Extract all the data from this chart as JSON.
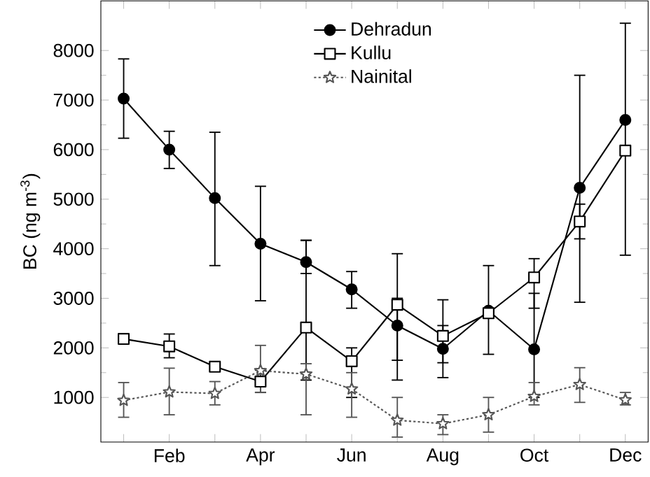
{
  "chart_data": {
    "type": "line",
    "ylabel": "BC (ng m$^{-3}$)",
    "categories": [
      null,
      "Feb",
      null,
      "Apr",
      null,
      "Jun",
      null,
      "Aug",
      null,
      "Oct",
      null,
      "Dec"
    ],
    "ylim": [
      100,
      9000
    ],
    "yticks": [
      1000,
      2000,
      3000,
      4000,
      5000,
      6000,
      7000,
      8000
    ],
    "legend": "top",
    "grid": false,
    "series": [
      {
        "name": "Dehradun",
        "color": "#000000",
        "marker": "circle",
        "line_style": "solid",
        "values": [
          7030,
          6000,
          5020,
          4100,
          3730,
          3180,
          2450,
          1980,
          2750,
          1970,
          5230,
          6600
        ],
        "errors": [
          [
            6230,
            7830
          ],
          [
            5620,
            6370
          ],
          [
            3660,
            6350
          ],
          [
            2950,
            5260
          ],
          [
            3500,
            4170
          ],
          [
            2800,
            3540
          ],
          [
            1750,
            3000
          ],
          [
            1400,
            2450
          ],
          [
            1870,
            3660
          ],
          [
            1000,
            3100
          ],
          [
            2920,
            7500
          ],
          [
            3870,
            8550
          ]
        ]
      },
      {
        "name": "Kullu",
        "color": "#000000",
        "marker": "square",
        "line_style": "solid",
        "values": [
          2180,
          2030,
          1620,
          1320,
          2410,
          1730,
          2870,
          2240,
          2700,
          3420,
          4550,
          5980
        ],
        "errors": [
          null,
          [
            1800,
            2280
          ],
          null,
          [
            1100,
            1550
          ],
          [
            1350,
            4170
          ],
          [
            1000,
            2000
          ],
          [
            1350,
            3900
          ],
          [
            1700,
            2970
          ],
          null,
          [
            2800,
            3800
          ],
          [
            4200,
            4900
          ],
          null
        ]
      },
      {
        "name": "Nainital",
        "color": "#555555",
        "marker": "star",
        "line_style": "dotted",
        "values": [
          940,
          1110,
          1080,
          1540,
          1470,
          1170,
          540,
          470,
          650,
          1020,
          1260,
          950
        ],
        "errors": [
          [
            600,
            1300
          ],
          [
            650,
            1590
          ],
          [
            850,
            1320
          ],
          [
            1100,
            2050
          ],
          [
            650,
            1680
          ],
          [
            600,
            1500
          ],
          [
            200,
            1000
          ],
          [
            250,
            650
          ],
          [
            300,
            1000
          ],
          [
            850,
            1300
          ],
          [
            900,
            1600
          ],
          [
            850,
            1100
          ]
        ]
      }
    ]
  }
}
